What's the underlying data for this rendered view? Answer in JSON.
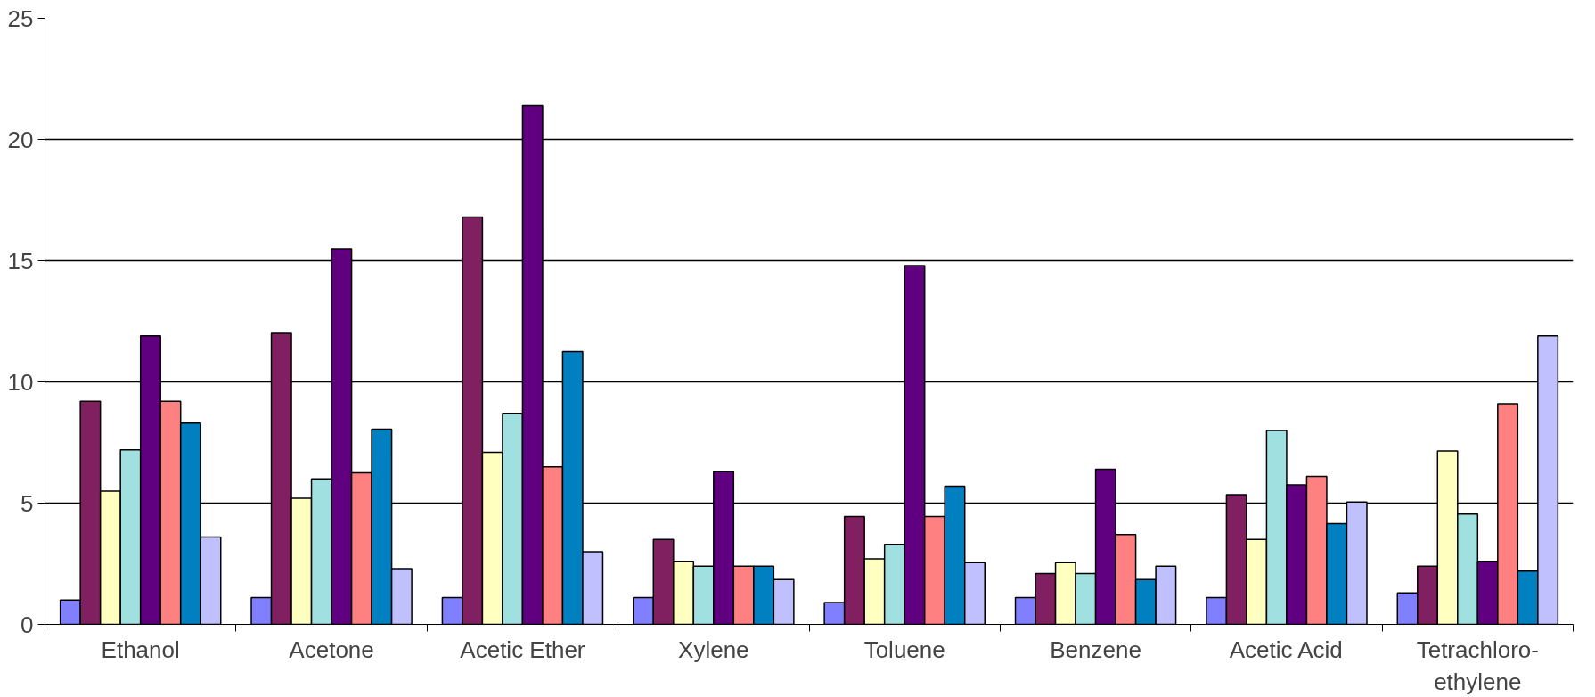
{
  "chart_data": {
    "type": "bar",
    "categories": [
      "Ethanol",
      "Acetone",
      "Acetic Ether",
      "Xylene",
      "Toluene",
      "Benzene",
      "Acetic Acid",
      "Tetrachloro-ethylene"
    ],
    "series": [
      {
        "color": "#8080ff",
        "values": [
          1.0,
          1.1,
          1.1,
          1.1,
          0.9,
          1.1,
          1.1,
          1.3
        ]
      },
      {
        "color": "#802060",
        "values": [
          9.2,
          12.0,
          16.8,
          3.5,
          4.45,
          2.1,
          5.35,
          2.4
        ]
      },
      {
        "color": "#ffffc0",
        "values": [
          5.5,
          5.2,
          7.1,
          2.6,
          2.7,
          2.55,
          3.5,
          7.15
        ]
      },
      {
        "color": "#a0e0e0",
        "values": [
          7.2,
          6.0,
          8.7,
          2.4,
          3.3,
          2.1,
          8.0,
          4.55
        ]
      },
      {
        "color": "#600080",
        "values": [
          11.9,
          15.5,
          21.4,
          6.3,
          14.8,
          6.4,
          5.75,
          2.6
        ]
      },
      {
        "color": "#ff8080",
        "values": [
          9.2,
          6.25,
          6.5,
          2.4,
          4.45,
          3.7,
          6.1,
          9.1
        ]
      },
      {
        "color": "#0080c0",
        "values": [
          8.3,
          8.05,
          11.25,
          2.4,
          5.7,
          1.85,
          4.15,
          2.2
        ]
      },
      {
        "color": "#c0c0ff",
        "values": [
          3.6,
          2.3,
          3.0,
          1.85,
          2.55,
          2.4,
          5.05,
          11.9
        ]
      }
    ],
    "ylim": [
      0,
      25
    ],
    "yticks": [
      0,
      5,
      10,
      15,
      20,
      25
    ],
    "grid": "y"
  }
}
